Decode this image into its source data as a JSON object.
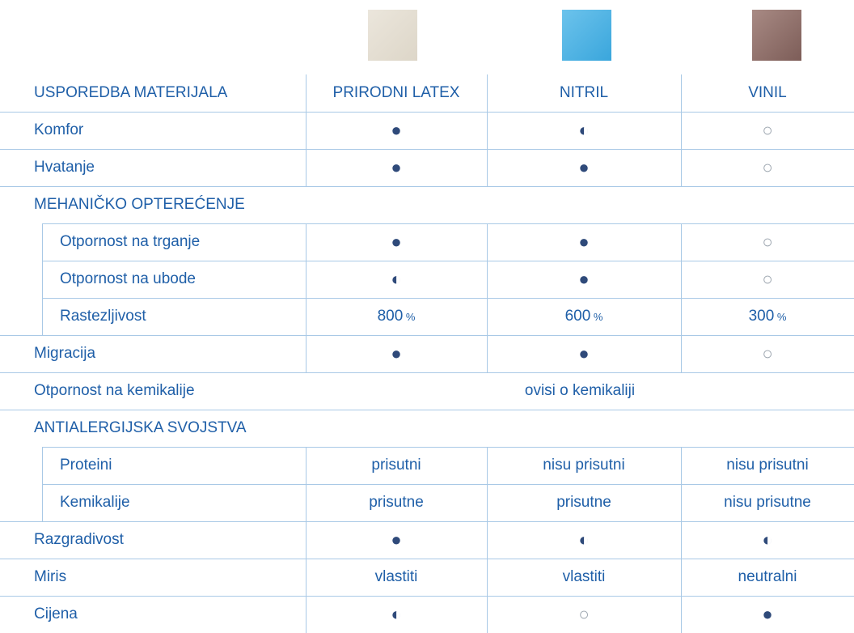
{
  "table": {
    "header": [
      "USPOREDBA MATERIJALA",
      "PRIRODNI LATEX",
      "NITRIL",
      "VINIL"
    ],
    "rows": [
      {
        "label": "Komfor",
        "cells": [
          "●",
          "◐",
          "○"
        ]
      },
      {
        "label": "Hvatanje",
        "cells": [
          "●",
          "●",
          "○"
        ]
      },
      {
        "label": "MEHANIČKO OPTEREĆENJE"
      },
      {
        "label": "Otpornost na trganje",
        "indent": true,
        "cells": [
          "●",
          "●",
          "○"
        ]
      },
      {
        "label": "Otpornost na ubode",
        "indent": true,
        "cells": [
          "◐",
          "●",
          "○"
        ]
      },
      {
        "label": "Rastezljivost",
        "indent": true,
        "cells": [
          {
            "value": "800",
            "unit": "%"
          },
          {
            "value": "600",
            "unit": "%"
          },
          {
            "value": "300",
            "unit": "%"
          }
        ]
      },
      {
        "label": "Migracija",
        "cells": [
          "●",
          "●",
          "○"
        ]
      },
      {
        "label": "Otpornost na kemikalije",
        "span": "ovisi o kemikaliji"
      },
      {
        "label": "ANTIALERGIJSKA SVOJSTVA"
      },
      {
        "label": "Proteini",
        "indent": true,
        "cells": [
          "prisutni",
          "nisu prisutni",
          "nisu prisutni"
        ]
      },
      {
        "label": "Kemikalije",
        "indent": true,
        "cells": [
          "prisutne",
          "prisutne",
          "nisu prisutne"
        ]
      },
      {
        "label": "Razgradivost",
        "cells": [
          "●",
          "◐",
          "◐"
        ]
      },
      {
        "label": "Miris",
        "cells": [
          "vlastiti",
          "vlastiti",
          "neutralni"
        ]
      },
      {
        "label": "Cijena",
        "cells": [
          "◐",
          "○",
          "●"
        ]
      }
    ]
  }
}
